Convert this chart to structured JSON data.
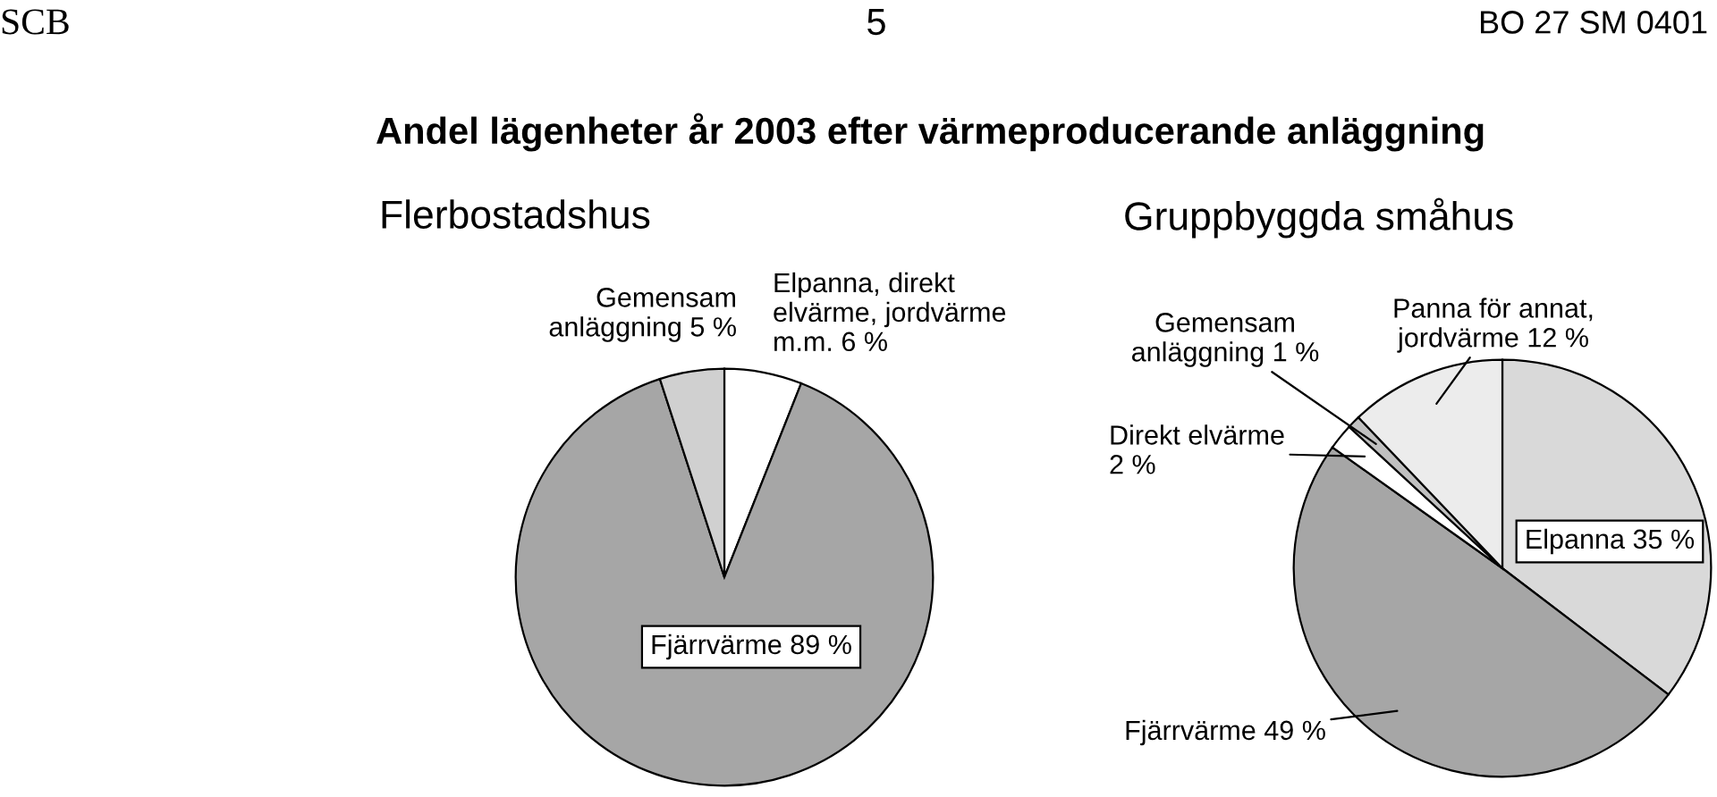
{
  "chart_data": [
    {
      "type": "pie",
      "title": "Flerbostadshus",
      "annotations": [
        "SCB",
        "5",
        "BO 27 SM 0401",
        "Andel lägenheter år 2003 efter värmeproducerande anläggning"
      ],
      "categories": [
        "Elpanna, direkt\nelvärme, jordvärme\nm.m. 6 %",
        "Fjärrvärme 89 %",
        "Gemensam\nanläggning 5 %"
      ],
      "values": [
        6,
        89,
        5
      ],
      "colors": [
        "#ffffff",
        "#a6a6a6",
        "#d0d0d0"
      ]
    },
    {
      "type": "pie",
      "title": "Gruppbyggda småhus",
      "categories": [
        "Elpanna 35 %",
        "Fjärrvärme 49 %",
        "Direkt elvärme\n2 %",
        "Gemensam\nanläggning 1 %",
        "Panna för annat,\njordvärme 12 %"
      ],
      "values": [
        35,
        49,
        2,
        1,
        12
      ],
      "colors": [
        "#d9d9d9",
        "#a6a6a6",
        "#ffffff",
        "#c0c0c0",
        "#ececec"
      ]
    }
  ]
}
